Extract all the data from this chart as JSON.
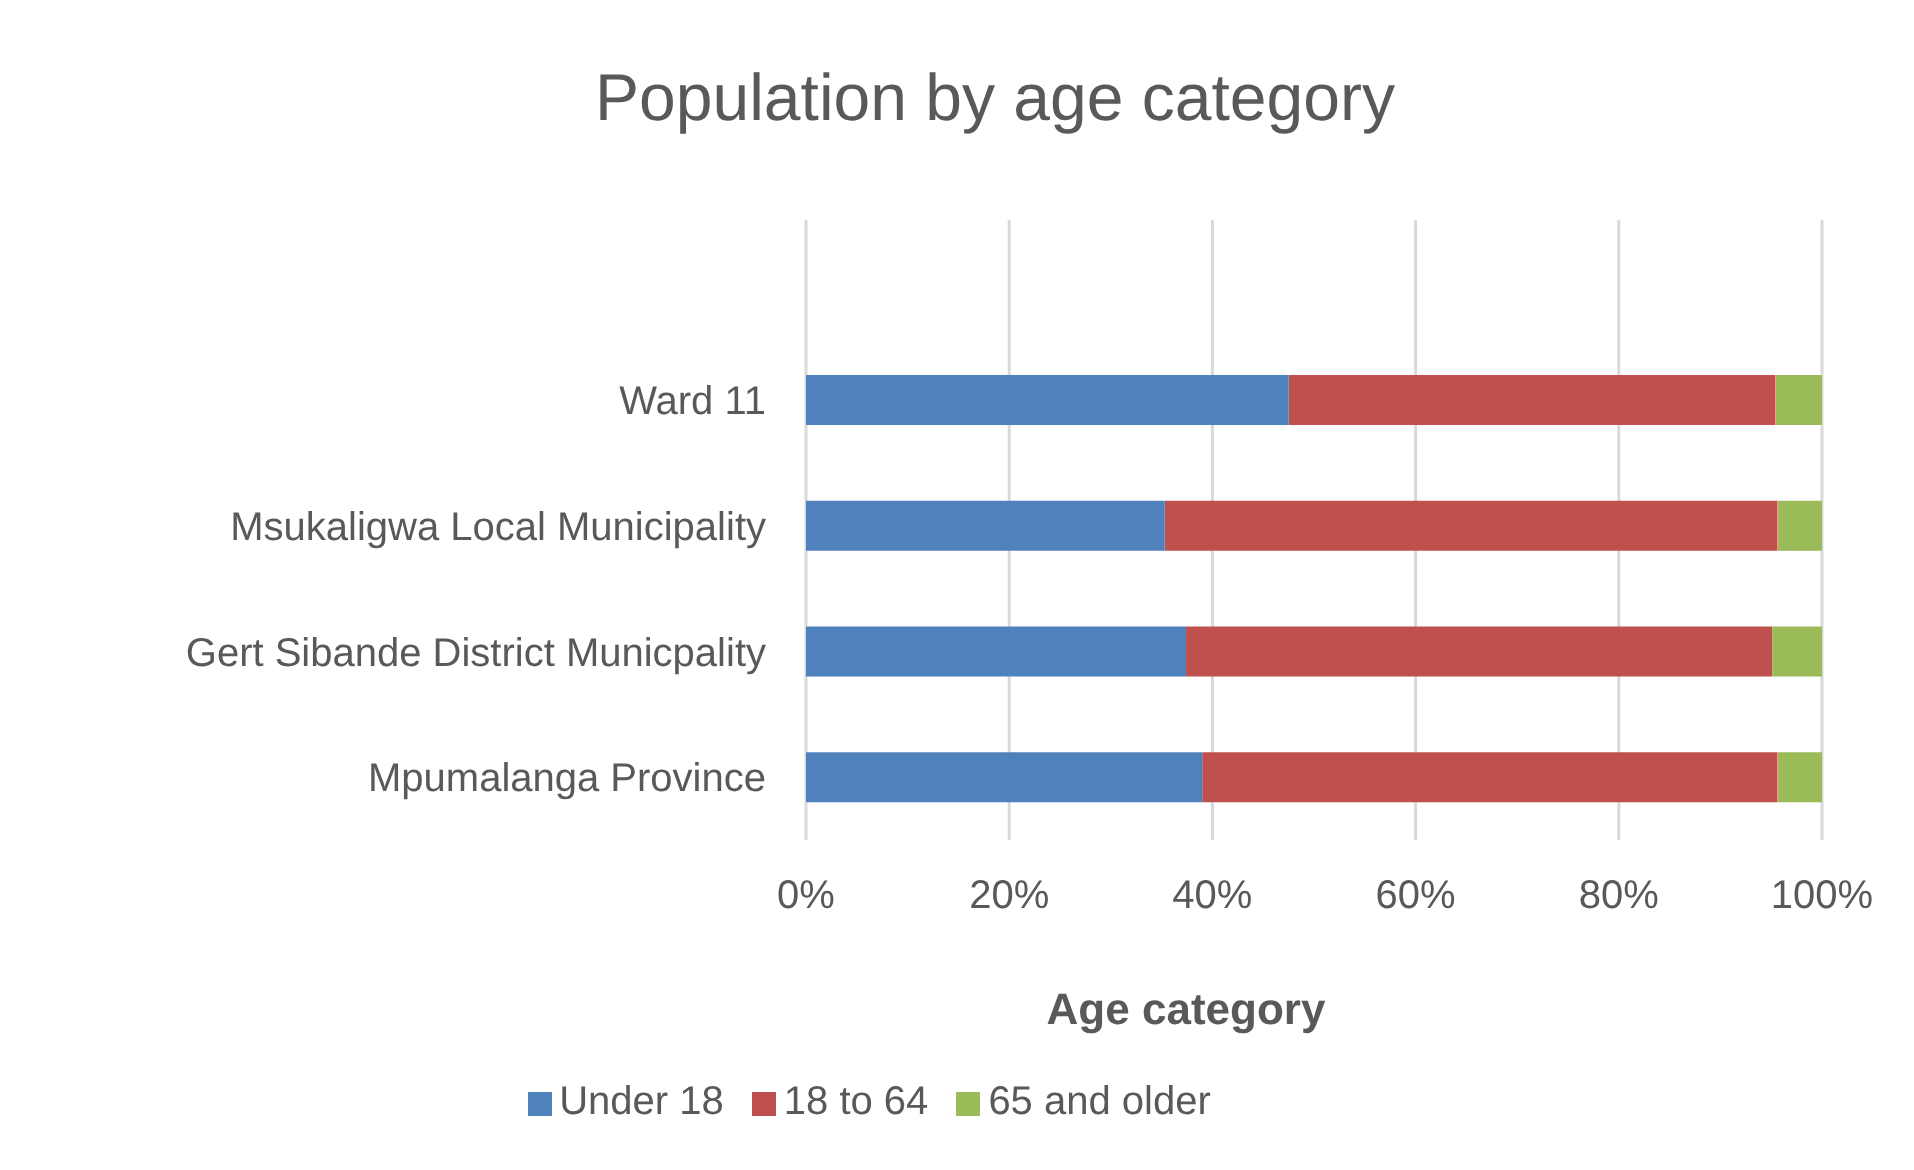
{
  "chart_data": {
    "type": "bar",
    "title": "Population by age category",
    "xlabel": "Age category",
    "orientation": "horizontal",
    "stacked": true,
    "categories": [
      "Ward 11",
      "Msukaligwa Local Municipality",
      "Gert Sibande District Municpality",
      "Mpumalanga Province"
    ],
    "series": [
      {
        "name": "Under 18",
        "color": "#4f81bd",
        "values": [
          47.5,
          35.3,
          37.4,
          39.0
        ]
      },
      {
        "name": "18 to 64",
        "color": "#c0504d",
        "values": [
          47.9,
          60.3,
          57.7,
          56.6
        ]
      },
      {
        "name": "65 and older",
        "color": "#9bbb59",
        "values": [
          4.6,
          4.4,
          4.9,
          4.4
        ]
      }
    ],
    "xlim": [
      0,
      100
    ],
    "xticks": [
      {
        "value": 0,
        "label": "0%"
      },
      {
        "value": 20,
        "label": "20%"
      },
      {
        "value": 40,
        "label": "40%"
      },
      {
        "value": 60,
        "label": "60%"
      },
      {
        "value": 80,
        "label": "80%"
      },
      {
        "value": 100,
        "label": "100%"
      }
    ],
    "grid": "x",
    "legend": "bottom"
  }
}
